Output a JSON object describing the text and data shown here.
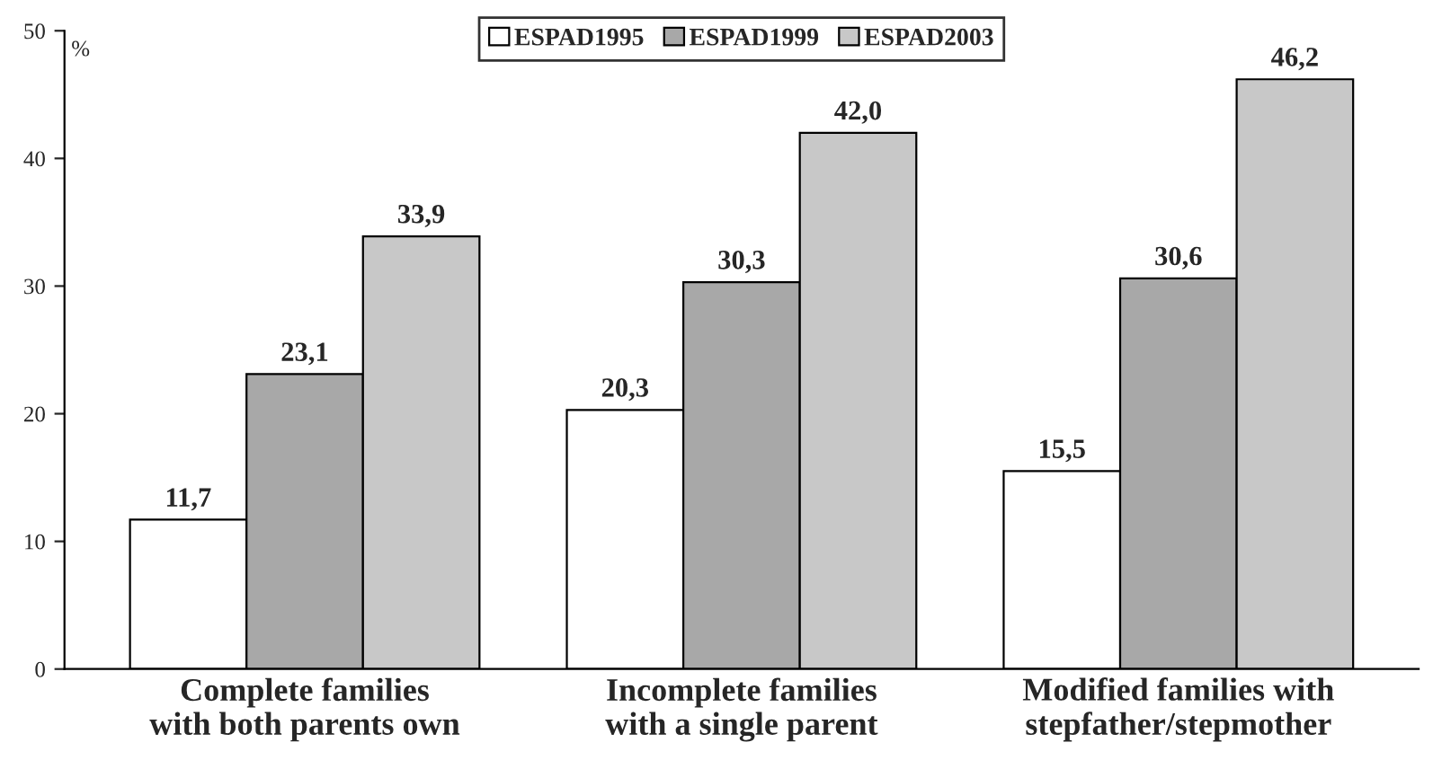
{
  "chart_data": {
    "type": "bar",
    "ylabel": "%",
    "categories": [
      "Complete families\nwith both parents own",
      "Incomplete families\nwith a single parent",
      "Modified families with\nstepfather/stepmother"
    ],
    "series": [
      {
        "name": "ESPAD1995",
        "color": "#ffffff",
        "values": [
          11.7,
          20.3,
          15.5
        ],
        "value_labels": [
          "11,7",
          "20,3",
          "15,5"
        ]
      },
      {
        "name": "ESPAD1999",
        "color": "#a8a8a8",
        "values": [
          23.1,
          30.3,
          30.6
        ],
        "value_labels": [
          "23,1",
          "30,3",
          "30,6"
        ]
      },
      {
        "name": "ESPAD2003",
        "color": "#c8c8c8",
        "values": [
          33.9,
          42.0,
          46.2
        ],
        "value_labels": [
          "33,9",
          "42,0",
          "46,2"
        ]
      }
    ],
    "ylim": [
      0,
      50
    ],
    "yticks": [
      0,
      10,
      20,
      30,
      40,
      50
    ],
    "grid": false,
    "legend": "top"
  }
}
